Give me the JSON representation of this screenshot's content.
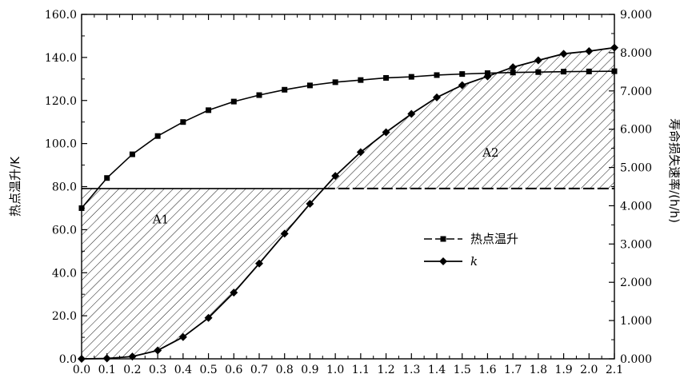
{
  "chart_data": {
    "type": "line",
    "x": [
      0.0,
      0.1,
      0.2,
      0.3,
      0.4,
      0.5,
      0.6,
      0.7,
      0.8,
      0.9,
      1.0,
      1.1,
      1.2,
      1.3,
      1.4,
      1.5,
      1.6,
      1.7,
      1.8,
      1.9,
      2.0,
      2.1
    ],
    "xticks": [
      "0.0",
      "0.1",
      "0.2",
      "0.3",
      "0.4",
      "0.5",
      "0.6",
      "0.7",
      "0.8",
      "0.9",
      "1.0",
      "1.1",
      "1.2",
      "1.3",
      "1.4",
      "1.5",
      "1.6",
      "1.7",
      "1.8",
      "1.9",
      "2.0",
      "2.1"
    ],
    "xlim": [
      0,
      2.1
    ],
    "ylabel": "热点温升/K",
    "ylim": [
      0,
      160
    ],
    "yticks": [
      "0.0",
      "20.0",
      "40.0",
      "60.0",
      "80.0",
      "100.0",
      "120.0",
      "140.0",
      "160.0"
    ],
    "y2label": "寿命损失速率/(h/h)",
    "y2lim": [
      0,
      9
    ],
    "y2ticks": [
      "0.000",
      "1.000",
      "2.000",
      "3.000",
      "4.000",
      "5.000",
      "6.000",
      "7.000",
      "8.000",
      "9.000"
    ],
    "reference_line": {
      "axis": "y2",
      "value": 4.45
    },
    "regions": [
      {
        "label": "A1",
        "x_range": [
          0.0,
          0.96
        ],
        "between": "k and reference line"
      },
      {
        "label": "A2",
        "x_range": [
          0.96,
          2.1
        ],
        "between": "reference line and k"
      }
    ],
    "series": [
      {
        "name": "热点温升",
        "axis": "y",
        "marker": "square",
        "values": [
          70.0,
          84.0,
          95.0,
          103.5,
          110.0,
          115.5,
          119.5,
          122.5,
          125.0,
          127.0,
          128.5,
          129.5,
          130.5,
          131.0,
          131.8,
          132.3,
          132.7,
          133.0,
          133.2,
          133.4,
          133.5,
          133.6
        ]
      },
      {
        "name": "k",
        "axis": "y2",
        "marker": "diamond",
        "values": [
          0.0,
          0.01,
          0.06,
          0.22,
          0.57,
          1.07,
          1.73,
          2.49,
          3.27,
          4.05,
          4.78,
          5.4,
          5.92,
          6.4,
          6.83,
          7.15,
          7.38,
          7.62,
          7.8,
          7.97,
          8.04,
          8.13
        ]
      }
    ],
    "legend": {
      "position": "center-right"
    },
    "grid": false
  }
}
